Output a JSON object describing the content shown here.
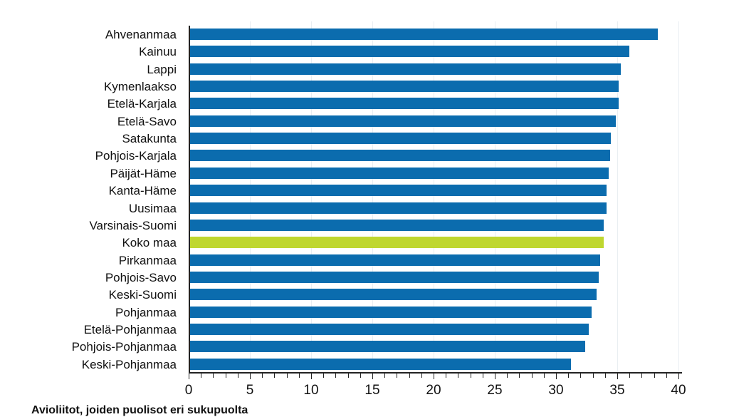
{
  "chart_data": {
    "type": "bar",
    "orientation": "horizontal",
    "title": "",
    "xlabel": "",
    "ylabel": "",
    "xlim": [
      0,
      40
    ],
    "xticks": [
      0,
      5,
      10,
      15,
      20,
      25,
      30,
      35,
      40
    ],
    "grid": true,
    "legend": null,
    "categories": [
      "Ahvenanmaa",
      "Kainuu",
      "Lappi",
      "Kymenlaakso",
      "Etelä-Karjala",
      "Etelä-Savo",
      "Satakunta",
      "Pohjois-Karjala",
      "Päijät-Häme",
      "Kanta-Häme",
      "Uusimaa",
      "Varsinais-Suomi",
      "Koko maa",
      "Pirkanmaa",
      "Pohjois-Savo",
      "Keski-Suomi",
      "Pohjanmaa",
      "Etelä-Pohjanmaa",
      "Pohjois-Pohjanmaa",
      "Keski-Pohjanmaa"
    ],
    "values": [
      38.3,
      36.0,
      35.3,
      35.1,
      35.1,
      34.9,
      34.5,
      34.4,
      34.3,
      34.1,
      34.1,
      33.9,
      33.9,
      33.6,
      33.5,
      33.3,
      32.9,
      32.7,
      32.4,
      31.2
    ],
    "highlight": "Koko maa",
    "colors": {
      "default": "#0b6cae",
      "highlight": "#bfd730"
    },
    "caption": "Avioliitot, joiden puolisot eri sukupuolta"
  }
}
